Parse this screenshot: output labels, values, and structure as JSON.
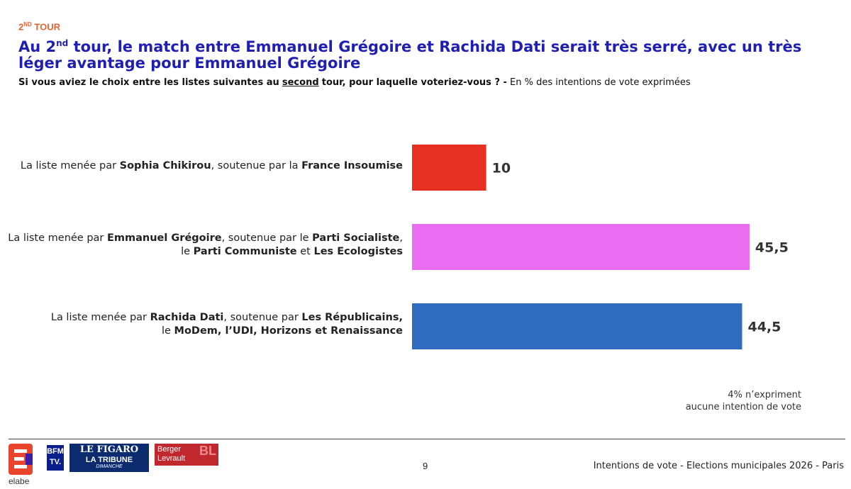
{
  "header": {
    "section_tag_prefix": "2",
    "section_tag_sup": "ND",
    "section_tag_suffix": " TOUR",
    "title_prefix": "Au 2",
    "title_sup": "nd",
    "title_suffix": " tour, le match entre Emmanuel Grégoire et Rachida Dati serait très serré, avec un très léger avantage pour Emmanuel Grégoire",
    "question": "Si vous aviez le choix entre les listes suivantes au",
    "question_underlined": "second",
    "question_end": "tour, pour laquelle voteriez-vous ? -",
    "question_unit": "En % des intentions de vote exprimées"
  },
  "rows": [
    {
      "line1": [
        {
          "t": "La liste menée par ",
          "b": false
        },
        {
          "t": "Sophia Chikirou",
          "b": true
        },
        {
          "t": ", soutenue par la ",
          "b": false
        },
        {
          "t": "France Insoumise",
          "b": true
        }
      ],
      "line2": []
    },
    {
      "line1": [
        {
          "t": "La liste menée par ",
          "b": false
        },
        {
          "t": "Emmanuel Grégoire",
          "b": true
        },
        {
          "t": ", soutenue par le ",
          "b": false
        },
        {
          "t": "Parti Socialiste",
          "b": true
        },
        {
          "t": ",",
          "b": false
        }
      ],
      "line2": [
        {
          "t": "le ",
          "b": false
        },
        {
          "t": "Parti Communiste",
          "b": true
        },
        {
          "t": " et ",
          "b": false
        },
        {
          "t": "Les Ecologistes",
          "b": true
        }
      ]
    },
    {
      "line1": [
        {
          "t": "La liste menée par ",
          "b": false
        },
        {
          "t": "Rachida Dati",
          "b": true
        },
        {
          "t": ", soutenue par ",
          "b": false
        },
        {
          "t": "Les Républicains,",
          "b": true
        }
      ],
      "line2": [
        {
          "t": "le ",
          "b": false
        },
        {
          "t": "MoDem, l’UDI, Horizons et Renaissance",
          "b": true
        }
      ]
    }
  ],
  "chart_data": {
    "type": "bar",
    "orientation": "horizontal",
    "categories": [
      "La liste menée par Sophia Chikirou, soutenue par la France Insoumise",
      "La liste menée par Emmanuel Grégoire, soutenue par le Parti Socialiste, le Parti Communiste et Les Ecologistes",
      "La liste menée par Rachida Dati, soutenue par Les Républicains, le MoDem, l’UDI, Horizons et Renaissance"
    ],
    "values": [
      10,
      45.5,
      44.5
    ],
    "value_labels": [
      "10",
      "45,5",
      "44,5"
    ],
    "colors": [
      "#e63022",
      "#ea6cf0",
      "#2f6cc0"
    ],
    "xlim": [
      0,
      50
    ],
    "grid": false
  },
  "note": {
    "line1": "4% n’expriment",
    "line2": "aucune intention de vote"
  },
  "footer": {
    "elabe": "elabe",
    "bfm_line1": "BFM",
    "bfm_line2": "TV.",
    "figaro": "LE FIGARO",
    "tribune": "LA TRIBUNE",
    "dimanche": "DIMANCHE",
    "berger_line1": "Berger",
    "berger_line2": "Levrault",
    "berger_mark": "BL",
    "page_number": "9",
    "footer_text": "Intentions de vote - Elections municipales 2026 - Paris"
  },
  "colors": {
    "title": "#1f1fb4",
    "section_tag": "#e8622f"
  }
}
